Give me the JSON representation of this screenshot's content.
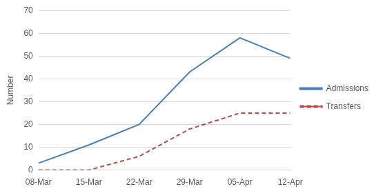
{
  "chart_data": {
    "type": "line",
    "y_label": "Number",
    "categories": [
      "08-Mar",
      "15-Mar",
      "22-Mar",
      "29-Mar",
      "05-Apr",
      "12-Apr"
    ],
    "series": [
      {
        "name": "Admissions",
        "color": "#4a7ebb",
        "line_style": "solid",
        "values": [
          3,
          11,
          20,
          43,
          58,
          49
        ]
      },
      {
        "name": "Transfers",
        "color": "#be4b48",
        "line_style": "dashed",
        "values": [
          0,
          0,
          6,
          18,
          25,
          25
        ]
      }
    ],
    "ylim": [
      0,
      70
    ],
    "yticks": [
      0,
      10,
      20,
      30,
      40,
      50,
      60,
      70
    ],
    "grid": true,
    "legend": "right"
  }
}
